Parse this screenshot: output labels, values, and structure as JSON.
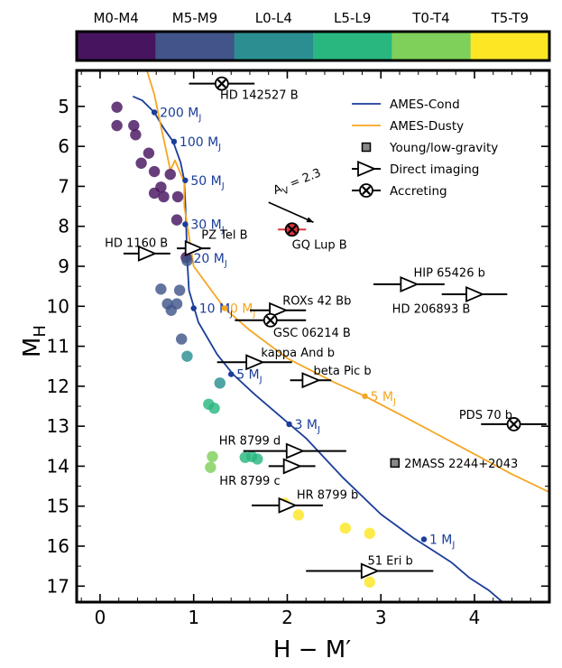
{
  "chart_data": {
    "type": "scatter",
    "xlabel_main": "H − M",
    "xlabel_prime": "′",
    "ylabel_main": "M",
    "ylabel_sub": "H",
    "xlim": [
      -0.25,
      4.8
    ],
    "ylim": [
      17.4,
      4.1
    ],
    "x_ticks": [
      0,
      1,
      2,
      3,
      4
    ],
    "y_ticks": [
      5,
      6,
      7,
      8,
      9,
      10,
      11,
      12,
      13,
      14,
      15,
      16,
      17
    ],
    "colorbar": [
      {
        "label": "M0-M4",
        "color": "#47155f"
      },
      {
        "label": "M5-M9",
        "color": "#41558a"
      },
      {
        "label": "L0-L4",
        "color": "#2b8f91"
      },
      {
        "label": "L5-L9",
        "color": "#29b77f"
      },
      {
        "label": "T0-T4",
        "color": "#7fd05a"
      },
      {
        "label": "T5-T9",
        "color": "#fde725"
      }
    ],
    "legend": [
      {
        "label": "AMES-Cond",
        "kind": "line",
        "color": "#1a3d99"
      },
      {
        "label": "AMES-Dusty",
        "kind": "line",
        "color": "#f5a623"
      },
      {
        "label": "Young/low-gravity",
        "kind": "square"
      },
      {
        "label": "Direct imaging",
        "kind": "triangle"
      },
      {
        "label": "Accreting",
        "kind": "cross"
      }
    ],
    "series": [
      {
        "name": "AMES-Cond",
        "color": "#1a3d99",
        "x": [
          0.35,
          0.45,
          0.58,
          0.68,
          0.78,
          0.86,
          0.9,
          0.91,
          0.92,
          0.93,
          0.95,
          1.05,
          1.25,
          1.42,
          1.65,
          1.9,
          2.2,
          2.6,
          3.0,
          3.35,
          3.55,
          3.75,
          3.95,
          4.15,
          4.35
        ],
        "y": [
          4.75,
          4.85,
          5.15,
          5.55,
          5.88,
          6.4,
          6.85,
          7.4,
          8.0,
          8.8,
          9.6,
          10.4,
          11.2,
          11.7,
          12.2,
          12.7,
          13.3,
          14.3,
          15.2,
          15.8,
          16.1,
          16.4,
          16.8,
          17.1,
          17.5
        ]
      },
      {
        "name": "AMES-Dusty",
        "color": "#f5a623",
        "x": [
          0.5,
          0.58,
          0.65,
          0.72,
          0.75,
          0.8,
          0.9,
          0.9,
          1.0,
          1.33,
          1.6,
          2.0,
          2.5,
          2.83,
          3.2,
          3.6,
          4.0,
          4.4,
          4.8
        ],
        "y": [
          4.1,
          4.7,
          5.5,
          6.25,
          6.6,
          6.35,
          6.9,
          7.5,
          9.0,
          10.05,
          10.6,
          11.3,
          11.9,
          12.25,
          12.7,
          13.2,
          13.7,
          14.2,
          14.65
        ]
      }
    ],
    "mass_markers": [
      {
        "label": "200 M",
        "sub": "J",
        "model": "cond",
        "x": 0.58,
        "y": 5.15
      },
      {
        "label": "100 M",
        "sub": "J",
        "model": "cond",
        "x": 0.79,
        "y": 5.88
      },
      {
        "label": "50 M",
        "sub": "J",
        "model": "cond",
        "x": 0.91,
        "y": 6.85
      },
      {
        "label": "30 M",
        "sub": "J",
        "model": "cond",
        "x": 0.91,
        "y": 7.95
      },
      {
        "label": "20 M",
        "sub": "J",
        "model": "cond",
        "x": 0.94,
        "y": 8.8
      },
      {
        "label": "10 M",
        "sub": "J",
        "model": "cond",
        "x": 1.0,
        "y": 10.05
      },
      {
        "label": "0 M",
        "sub": "J",
        "model": "dusty",
        "x": 1.33,
        "y": 10.05
      },
      {
        "label": "5 M",
        "sub": "J",
        "model": "cond",
        "x": 1.4,
        "y": 11.7
      },
      {
        "label": "5 M",
        "sub": "J",
        "model": "dusty",
        "x": 2.83,
        "y": 12.25
      },
      {
        "label": "3 M",
        "sub": "J",
        "model": "cond",
        "x": 2.02,
        "y": 12.95
      },
      {
        "label": "1 M",
        "sub": "J",
        "model": "cond",
        "x": 3.46,
        "y": 15.83
      }
    ],
    "field_dwarfs": [
      {
        "x": 0.18,
        "y": 5.02,
        "c": 0
      },
      {
        "x": 0.18,
        "y": 5.48,
        "c": 0
      },
      {
        "x": 0.36,
        "y": 5.48,
        "c": 0
      },
      {
        "x": 0.38,
        "y": 5.71,
        "c": 0
      },
      {
        "x": 0.52,
        "y": 6.17,
        "c": 0
      },
      {
        "x": 0.44,
        "y": 6.42,
        "c": 0
      },
      {
        "x": 0.58,
        "y": 6.63,
        "c": 0
      },
      {
        "x": 0.75,
        "y": 6.7,
        "c": 0
      },
      {
        "x": 0.65,
        "y": 7.02,
        "c": 0
      },
      {
        "x": 0.58,
        "y": 7.17,
        "c": 0
      },
      {
        "x": 0.68,
        "y": 7.26,
        "c": 0
      },
      {
        "x": 0.83,
        "y": 7.26,
        "c": 0
      },
      {
        "x": 0.82,
        "y": 7.84,
        "c": 0
      },
      {
        "x": 0.92,
        "y": 8.78,
        "c": 0
      },
      {
        "x": 0.93,
        "y": 8.86,
        "c": 1
      },
      {
        "x": 0.65,
        "y": 9.57,
        "c": 1
      },
      {
        "x": 0.85,
        "y": 9.6,
        "c": 1
      },
      {
        "x": 0.72,
        "y": 9.94,
        "c": 1
      },
      {
        "x": 0.82,
        "y": 9.94,
        "c": 1
      },
      {
        "x": 0.76,
        "y": 10.1,
        "c": 1
      },
      {
        "x": 0.87,
        "y": 10.82,
        "c": 1
      },
      {
        "x": 0.93,
        "y": 11.25,
        "c": 2
      },
      {
        "x": 1.28,
        "y": 11.92,
        "c": 2
      },
      {
        "x": 1.16,
        "y": 12.45,
        "c": 3
      },
      {
        "x": 1.22,
        "y": 12.55,
        "c": 3
      },
      {
        "x": 1.62,
        "y": 13.76,
        "c": 3
      },
      {
        "x": 1.68,
        "y": 13.82,
        "c": 3
      },
      {
        "x": 1.55,
        "y": 13.78,
        "c": 3
      },
      {
        "x": 1.2,
        "y": 13.76,
        "c": 4
      },
      {
        "x": 1.18,
        "y": 14.03,
        "c": 4
      },
      {
        "x": 1.97,
        "y": 14.93,
        "c": 5
      },
      {
        "x": 2.12,
        "y": 15.22,
        "c": 5
      },
      {
        "x": 2.62,
        "y": 15.55,
        "c": 5
      },
      {
        "x": 2.88,
        "y": 15.68,
        "c": 5
      },
      {
        "x": 2.88,
        "y": 16.9,
        "c": 5
      }
    ],
    "objects": [
      {
        "name": "HD 142527 B",
        "x": 1.3,
        "y": 4.43,
        "xerr": 0.35,
        "yerr": 0.0,
        "marker": "cross",
        "color": "#000000",
        "lx": 1.7,
        "ly": 4.7,
        "anchor": "middle"
      },
      {
        "name": "GQ Lup B",
        "x": 2.05,
        "y": 8.08,
        "xerr": 0.15,
        "yerr": 0.0,
        "marker": "cross-red",
        "color": "#e0333d",
        "lx": 2.05,
        "ly": 8.45,
        "anchor": "start"
      },
      {
        "name": "HD 1160 B",
        "x": 0.5,
        "y": 8.68,
        "xerr": 0.25,
        "yerr": 0.0,
        "marker": "triangle",
        "color": "#000000",
        "lx": 0.05,
        "ly": 8.4,
        "anchor": "start"
      },
      {
        "name": "PZ Tel B",
        "x": 1.0,
        "y": 8.55,
        "xerr": 0.18,
        "yerr": 0.0,
        "marker": "triangle",
        "color": "#000000",
        "lx": 1.33,
        "ly": 8.2,
        "anchor": "middle"
      },
      {
        "name": "HIP 65426 b",
        "x": 3.3,
        "y": 9.45,
        "xerr": 0.38,
        "yerr": 0.0,
        "marker": "triangle",
        "color": "#000000",
        "lx": 3.35,
        "ly": 9.15,
        "anchor": "start"
      },
      {
        "name": "HD 206893 B",
        "x": 4.0,
        "y": 9.7,
        "xerr": 0.35,
        "yerr": 0.0,
        "marker": "triangle",
        "color": "#000000",
        "lx": 3.12,
        "ly": 10.05,
        "anchor": "start"
      },
      {
        "name": "ROXs 42 Bb",
        "x": 1.9,
        "y": 10.1,
        "xerr": 0.3,
        "yerr": 0.0,
        "marker": "triangle",
        "color": "#000000",
        "lx": 1.95,
        "ly": 9.85,
        "anchor": "start"
      },
      {
        "name": "GSC 06214 B",
        "x": 1.82,
        "y": 10.35,
        "xerr": 0.38,
        "yerr": 0.0,
        "marker": "cross",
        "color": "#000000",
        "lx": 1.85,
        "ly": 10.65,
        "anchor": "start"
      },
      {
        "name": "kappa And b",
        "x": 1.65,
        "y": 11.4,
        "xerr": 0.4,
        "yerr": 0.0,
        "marker": "triangle",
        "color": "#000000",
        "lx": 1.72,
        "ly": 11.15,
        "anchor": "start"
      },
      {
        "name": "beta Pic b",
        "x": 2.25,
        "y": 11.85,
        "xerr": 0.22,
        "yerr": 0.0,
        "marker": "triangle",
        "color": "#000000",
        "lx": 2.28,
        "ly": 11.6,
        "anchor": "start"
      },
      {
        "name": "PDS 70 b",
        "x": 4.42,
        "y": 12.95,
        "xerr": 0.35,
        "yerr": 0.0,
        "marker": "cross",
        "color": "#000000",
        "lx": 4.12,
        "ly": 12.7,
        "anchor": "middle"
      },
      {
        "name": "HR 8799 d",
        "x": 2.08,
        "y": 13.62,
        "xerr": 0.55,
        "yerr": 0.0,
        "marker": "triangle",
        "color": "#000000",
        "lx": 1.6,
        "ly": 13.35,
        "anchor": "middle"
      },
      {
        "name": "HR 8799 c",
        "x": 2.05,
        "y": 14.0,
        "xerr": 0.25,
        "yerr": 0.0,
        "marker": "triangle",
        "color": "#000000",
        "lx": 1.6,
        "ly": 14.35,
        "anchor": "middle"
      },
      {
        "name": "2MASS 2244+2043",
        "x": 3.15,
        "y": 13.92,
        "xerr": 0.0,
        "yerr": 0.0,
        "marker": "square",
        "color": "#000000",
        "lx": 3.25,
        "ly": 13.92,
        "anchor": "start"
      },
      {
        "name": "HR 8799 b",
        "x": 2.0,
        "y": 14.98,
        "xerr": 0.38,
        "yerr": 0.0,
        "marker": "triangle",
        "color": "#000000",
        "lx": 2.1,
        "ly": 14.7,
        "anchor": "start"
      },
      {
        "name": "51 Eri b",
        "x": 2.88,
        "y": 16.62,
        "xerr": 0.68,
        "yerr": 0.0,
        "marker": "triangle",
        "color": "#000000",
        "lx": 3.1,
        "ly": 16.35,
        "anchor": "middle"
      }
    ],
    "extinction": {
      "label_main": "A",
      "label_sub": "V",
      "label_rest": " = 2.3",
      "x1": 1.8,
      "y1": 7.4,
      "x2": 2.28,
      "y2": 7.9,
      "lx": 1.87,
      "ly": 7.2
    }
  }
}
